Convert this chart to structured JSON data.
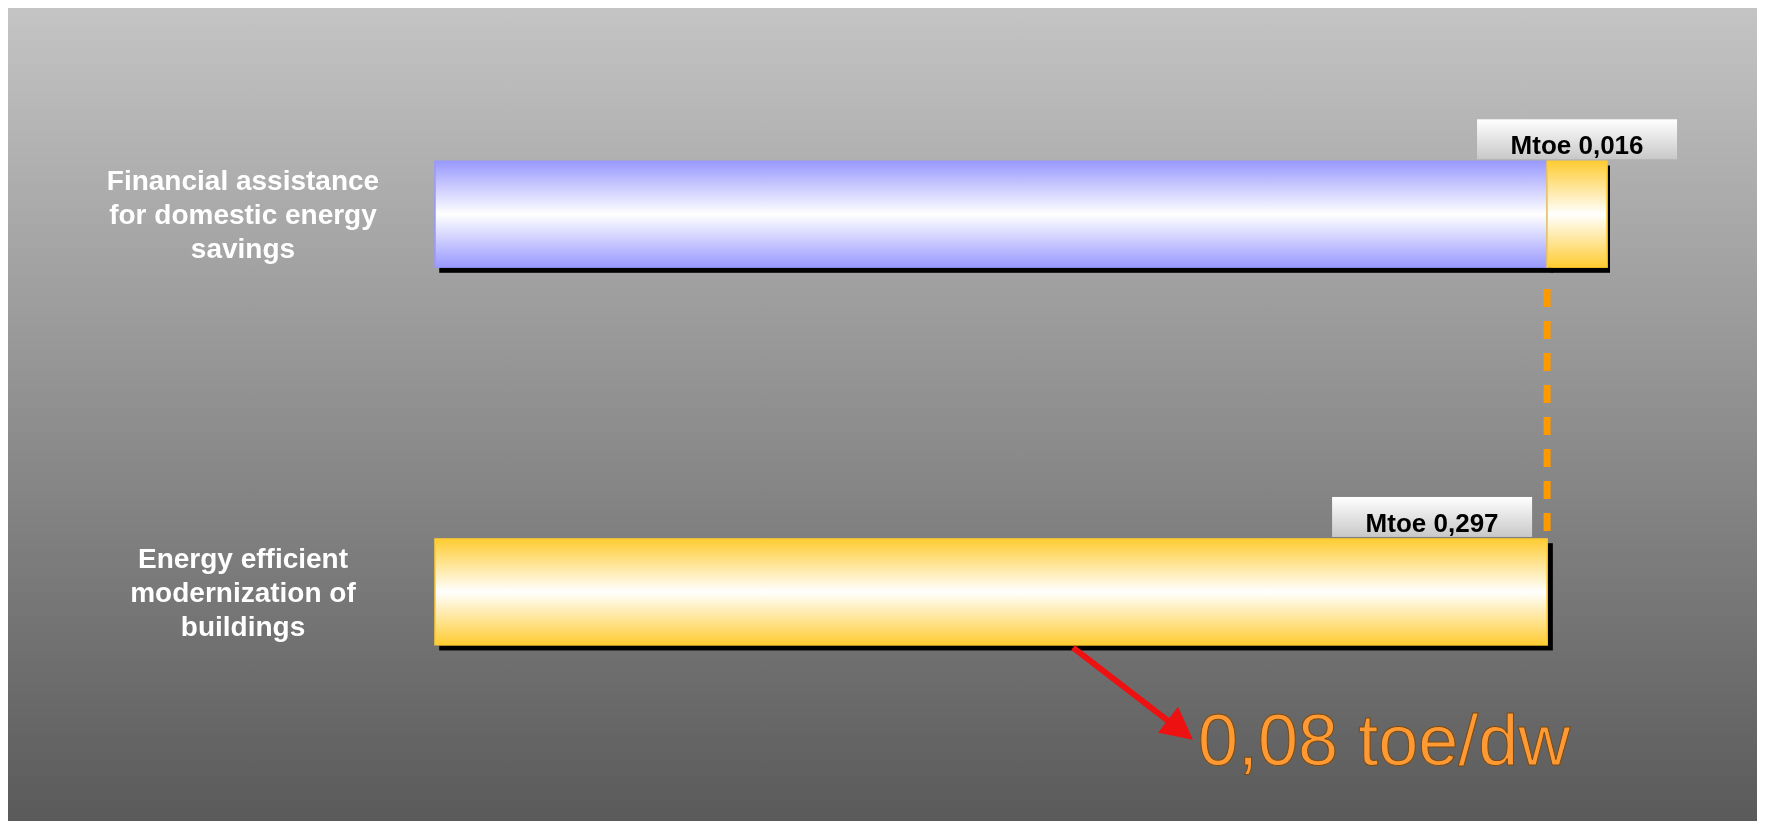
{
  "chart_data": {
    "type": "bar",
    "orientation": "horizontal",
    "stacked": true,
    "categories": [
      "Financial assistance for domestic energy savings",
      "Energy efficient modernization of buildings"
    ],
    "series": [
      {
        "color": "#9999ff",
        "values": [
          0.297,
          null
        ]
      },
      {
        "color": "#ffcc33",
        "values": [
          0.016,
          0.297
        ],
        "value_labels": [
          "Mtoe 0,016",
          "Mtoe 0,297"
        ]
      }
    ],
    "ref_lines": [
      {
        "axis": "x",
        "value": 0.297,
        "color": "#ff9900",
        "line_style": "dashed"
      }
    ],
    "annotations": [
      "0,08 toe/dw"
    ],
    "grid": false
  }
}
